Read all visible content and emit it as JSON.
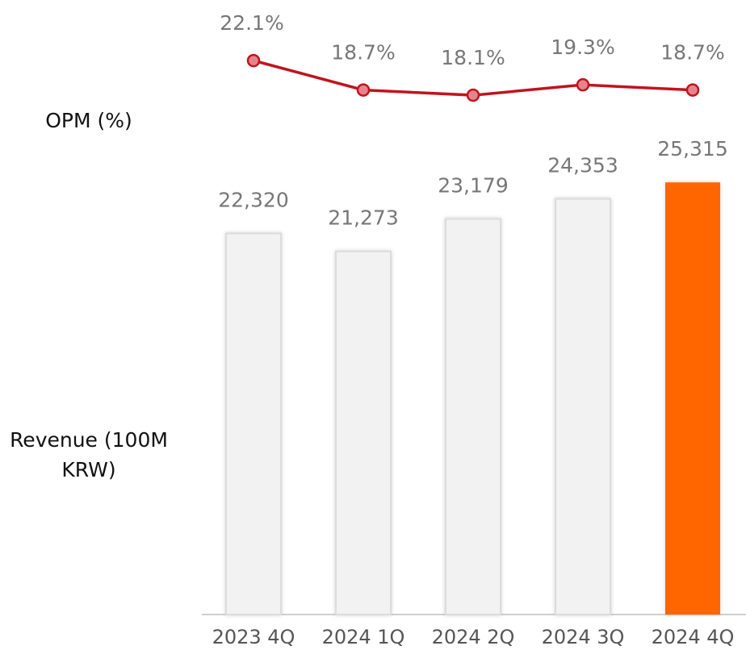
{
  "chart_data": {
    "type": "bar",
    "categories": [
      "2023 4Q",
      "2024 1Q",
      "2024 2Q",
      "2024 3Q",
      "2024 4Q"
    ],
    "values": [
      22320,
      21273,
      23179,
      24353,
      25315
    ],
    "value_labels": [
      "22,320",
      "21,273",
      "23,179",
      "24,353",
      "25,315"
    ],
    "colors": [
      "#f2f2f2",
      "#f2f2f2",
      "#f2f2f2",
      "#f2f2f2",
      "#ff6600"
    ],
    "ylim": [
      0,
      30000
    ],
    "ylabel": "Revenue (100M KRW)",
    "line": {
      "type": "line",
      "axis": "y2",
      "color": "#c0141e",
      "values": [
        22.1,
        18.7,
        18.1,
        19.3,
        18.7
      ],
      "value_labels": [
        "22.1%",
        "18.7%",
        "18.1%",
        "19.3%",
        "18.7%"
      ]
    },
    "y2lim": [
      10,
      25
    ],
    "y2label": "OPM (%)"
  }
}
